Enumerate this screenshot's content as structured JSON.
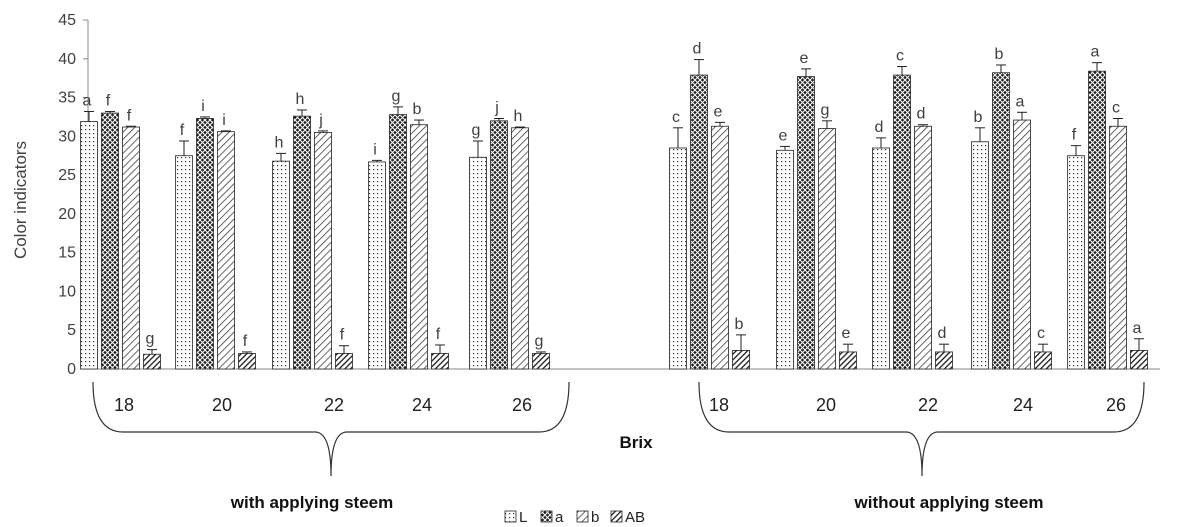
{
  "chart_data": {
    "type": "bar",
    "ylabel": "Color indicators",
    "xlabel": "Brix",
    "ylim": [
      0,
      45
    ],
    "yticks": [
      0,
      5,
      10,
      15,
      20,
      25,
      30,
      35,
      40,
      45
    ],
    "grid": false,
    "legend_position": "bottom-center",
    "groups": [
      {
        "label": "with applying steem",
        "categories": [
          "18",
          "20",
          "22",
          "24",
          "26"
        ],
        "series": [
          {
            "name": "L",
            "pattern": "dots",
            "values": [
              31.9,
              27.5,
              26.8,
              26.7,
              27.3
            ],
            "errors": [
              1.3,
              1.9,
              1.0,
              0.2,
              2.1
            ],
            "letters": [
              "a",
              "f",
              "h",
              "i",
              "g"
            ]
          },
          {
            "name": "a",
            "pattern": "crosshatch",
            "values": [
              33.0,
              32.3,
              32.6,
              32.8,
              32.0
            ],
            "errors": [
              0.2,
              0.2,
              0.8,
              1.0,
              0.3
            ],
            "letters": [
              "f",
              "i",
              "h",
              "g",
              "j"
            ]
          },
          {
            "name": "b",
            "pattern": "diagonal",
            "values": [
              31.2,
              30.6,
              30.5,
              31.5,
              31.1
            ],
            "errors": [
              0.1,
              0.1,
              0.2,
              0.6,
              0.1
            ],
            "letters": [
              "f",
              "i",
              "j",
              "b",
              "h"
            ]
          },
          {
            "name": "AB",
            "pattern": "thick-diagonal",
            "values": [
              1.9,
              2.0,
              2.0,
              2.0,
              2.0
            ],
            "errors": [
              0.6,
              0.2,
              1.0,
              1.1,
              0.2
            ],
            "letters": [
              "g",
              "f",
              "f",
              "f",
              "g"
            ]
          }
        ]
      },
      {
        "label": "without applying steem",
        "categories": [
          "18",
          "20",
          "22",
          "24",
          "26"
        ],
        "series": [
          {
            "name": "L",
            "pattern": "dots",
            "values": [
              28.5,
              28.2,
              28.5,
              29.3,
              27.5
            ],
            "errors": [
              2.6,
              0.5,
              1.3,
              1.8,
              1.3
            ],
            "letters": [
              "c",
              "e",
              "d",
              "b",
              "f"
            ]
          },
          {
            "name": "a",
            "pattern": "crosshatch",
            "values": [
              37.9,
              37.7,
              37.9,
              38.2,
              38.4
            ],
            "errors": [
              2.0,
              1.0,
              1.1,
              1.0,
              1.1
            ],
            "letters": [
              "d",
              "e",
              "c",
              "b",
              "a"
            ]
          },
          {
            "name": "b",
            "pattern": "diagonal",
            "values": [
              31.3,
              31.0,
              31.3,
              32.1,
              31.3
            ],
            "errors": [
              0.5,
              1.0,
              0.2,
              1.0,
              1.0
            ],
            "letters": [
              "e",
              "g",
              "d",
              "a",
              "c"
            ]
          },
          {
            "name": "AB",
            "pattern": "thick-diagonal",
            "values": [
              2.4,
              2.2,
              2.2,
              2.2,
              2.4
            ],
            "errors": [
              2.0,
              1.0,
              1.0,
              1.0,
              1.5
            ],
            "letters": [
              "b",
              "e",
              "d",
              "c",
              "a"
            ]
          }
        ]
      }
    ]
  }
}
